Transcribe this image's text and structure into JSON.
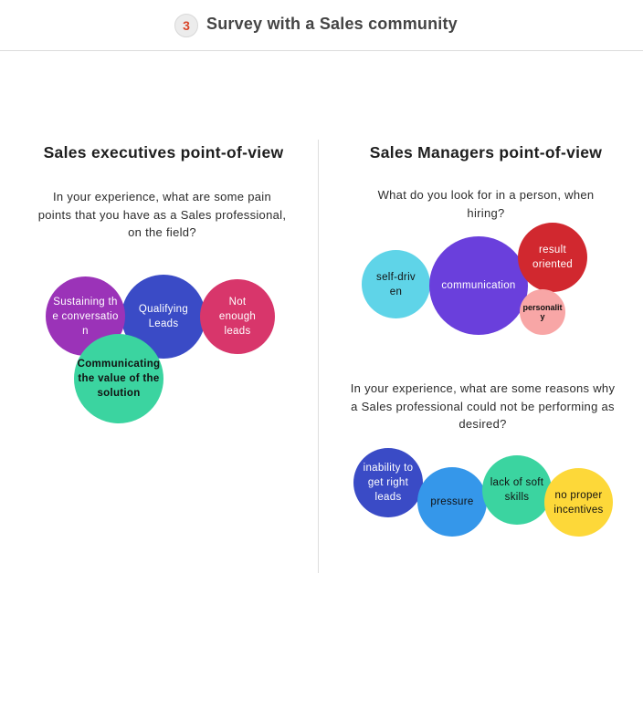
{
  "header": {
    "step_number": "3",
    "title": "Survey with a Sales community"
  },
  "left": {
    "title": "Sales executives point-of-view",
    "question": "In your experience, what are some pain points that you have as a Sales professional, on the field?",
    "bubbles": {
      "sustaining": "Sustaining the conversation",
      "qualifying": "Qualifying Leads",
      "not_enough": "Not enough leads",
      "communicating": "Communicating the value of the solution"
    }
  },
  "right": {
    "title": "Sales Managers point-of-view",
    "question1": "What do you look for in a person, when hiring?",
    "bubbles1": {
      "self_driven": "self-driven",
      "communication": "communication",
      "result_oriented": "result oriented",
      "personality": "personality"
    },
    "question2": "In your experience, what are some reasons why a Sales professional could not be performing as desired?",
    "bubbles2": {
      "inability": "inability to get right leads",
      "pressure": "pressure",
      "soft_skills": "lack of soft skills",
      "incentives": "no proper incentives"
    }
  },
  "colors": {
    "purple": "#9b33b8",
    "indigo": "#3a4bc6",
    "pink": "#d8366b",
    "green": "#3bd4a0",
    "cyan": "#5fd4e8",
    "violet": "#6a3fdc",
    "red": "#d1282f",
    "salmon": "#f8a6a6",
    "blue": "#3597ea",
    "yellow": "#fdd839",
    "badge_number": "#d9462a"
  }
}
